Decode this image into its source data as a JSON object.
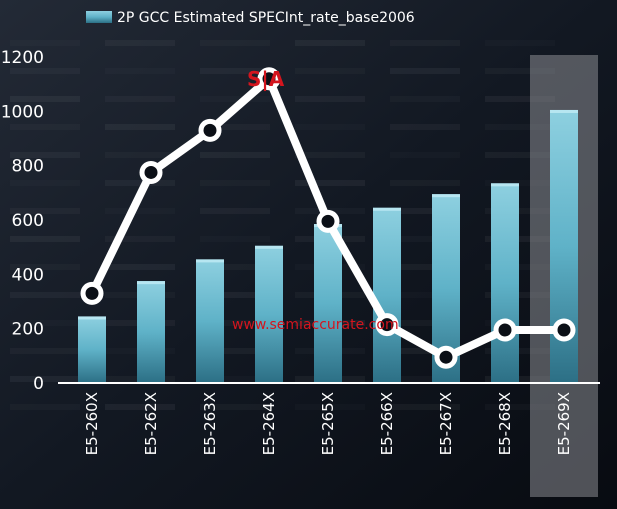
{
  "chart_data": {
    "type": "bar",
    "categories": [
      "E5-260X",
      "E5-262X",
      "E5-263X",
      "E5-264X",
      "E5-265X",
      "E5-266X",
      "E5-267X",
      "E5-268X",
      "E5-269X"
    ],
    "series": [
      {
        "name": "2P GCC Estimated SPECInt_rate_base2006",
        "type": "bar",
        "values": [
          245,
          375,
          455,
          505,
          585,
          645,
          695,
          735,
          1005
        ],
        "color": "#5fb2c8"
      },
      {
        "type": "line",
        "values": [
          330,
          775,
          930,
          1120,
          595,
          215,
          95,
          195,
          195
        ],
        "color": "#ffffff"
      }
    ],
    "highlighted_category": "E5-269X",
    "yticks": [
      0,
      200,
      400,
      600,
      800,
      1000,
      1200
    ],
    "ylim": [
      0,
      1200
    ],
    "legend_position": "top-left",
    "grid": false
  },
  "watermark": {
    "logo": "S|A",
    "site": "www.semiaccurate.com"
  }
}
